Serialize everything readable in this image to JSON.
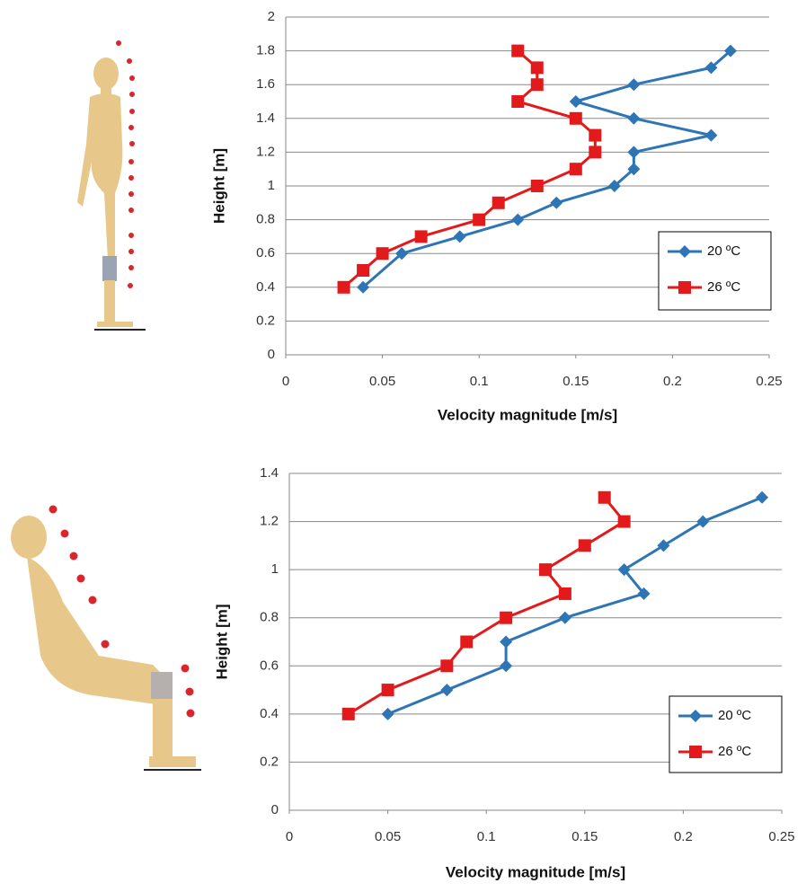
{
  "chart_data": [
    {
      "type": "line",
      "x_label": "Velocity magnitude [m/s]",
      "y_label": "Height [m]",
      "xlim": [
        0,
        0.25
      ],
      "xticks": [
        0,
        0.05,
        0.1,
        0.15,
        0.2,
        0.25
      ],
      "ylim": [
        0,
        2
      ],
      "yticks": [
        0,
        0.2,
        0.4,
        0.6,
        0.8,
        1,
        1.2,
        1.4,
        1.6,
        1.8,
        2
      ],
      "grid": true,
      "legend": "lower right",
      "series": [
        {
          "name": "20 ºC",
          "color": "#2e75b6",
          "marker": "diamond",
          "x": [
            0.04,
            0.06,
            0.09,
            0.12,
            0.14,
            0.17,
            0.18,
            0.18,
            0.22,
            0.18,
            0.15,
            0.18,
            0.22,
            0.23
          ],
          "values": [
            0.4,
            0.6,
            0.7,
            0.8,
            0.9,
            1,
            1.1,
            1.2,
            1.3,
            1.4,
            1.5,
            1.6,
            1.7,
            1.8
          ]
        },
        {
          "name": "26 ºC",
          "color": "#e31a1c",
          "marker": "square",
          "x": [
            0.03,
            0.04,
            0.05,
            0.07,
            0.1,
            0.11,
            0.13,
            0.15,
            0.16,
            0.16,
            0.15,
            0.12,
            0.13,
            0.13,
            0.12
          ],
          "values": [
            0.4,
            0.5,
            0.6,
            0.7,
            0.8,
            0.9,
            1,
            1.1,
            1.2,
            1.3,
            1.4,
            1.5,
            1.6,
            1.7,
            1.8
          ]
        }
      ]
    },
    {
      "type": "line",
      "x_label": "Velocity magnitude [m/s]",
      "y_label": "Height [m]",
      "xlim": [
        0,
        0.25
      ],
      "xticks": [
        0,
        0.05,
        0.1,
        0.15,
        0.2,
        0.25
      ],
      "ylim": [
        0,
        1.4
      ],
      "yticks": [
        0,
        0.2,
        0.4,
        0.6,
        0.8,
        1,
        1.2,
        1.4
      ],
      "grid": true,
      "legend": "lower right",
      "series": [
        {
          "name": "20 ºC",
          "color": "#2e75b6",
          "marker": "diamond",
          "x": [
            0.05,
            0.08,
            0.11,
            0.11,
            0.14,
            0.18,
            0.17,
            0.19,
            0.21,
            0.24
          ],
          "values": [
            0.4,
            0.5,
            0.6,
            0.7,
            0.8,
            0.9,
            1,
            1.1,
            1.2,
            1.3
          ]
        },
        {
          "name": "26 ºC",
          "color": "#e31a1c",
          "marker": "square",
          "x": [
            0.03,
            0.05,
            0.08,
            0.09,
            0.11,
            0.14,
            0.13,
            0.15,
            0.17,
            0.16
          ],
          "values": [
            0.4,
            0.5,
            0.6,
            0.7,
            0.8,
            0.9,
            1,
            1.1,
            1.2,
            1.3
          ]
        }
      ]
    }
  ]
}
